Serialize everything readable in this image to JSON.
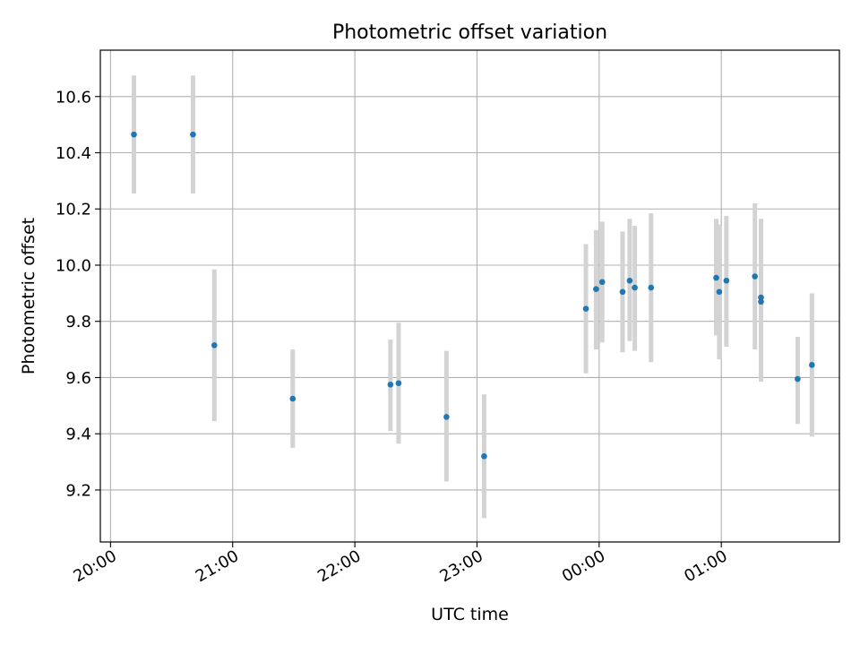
{
  "chart_data": {
    "type": "scatter",
    "title": "Photometric offset variation",
    "xlabel": "UTC time",
    "ylabel": "Photometric offset",
    "grid": true,
    "x_unit": "minutes since 20:00 UTC",
    "xlim": [
      -5,
      358
    ],
    "ylim": [
      9.015,
      10.765
    ],
    "x_ticks": [
      {
        "value": 0,
        "label": "20:00"
      },
      {
        "value": 60,
        "label": "21:00"
      },
      {
        "value": 120,
        "label": "22:00"
      },
      {
        "value": 180,
        "label": "23:00"
      },
      {
        "value": 240,
        "label": "00:00"
      },
      {
        "value": 300,
        "label": "01:00"
      }
    ],
    "y_ticks": [
      {
        "value": 9.2,
        "label": "9.2"
      },
      {
        "value": 9.4,
        "label": "9.4"
      },
      {
        "value": 9.6,
        "label": "9.6"
      },
      {
        "value": 9.8,
        "label": "9.8"
      },
      {
        "value": 10.0,
        "label": "10.0"
      },
      {
        "value": 10.2,
        "label": "10.2"
      },
      {
        "value": 10.4,
        "label": "10.4"
      },
      {
        "value": 10.6,
        "label": "10.6"
      }
    ],
    "marker_color": "#1f77b4",
    "errorbar_color": "#d3d3d3",
    "points": [
      {
        "x": 11.5,
        "y": 10.465,
        "lo": 10.255,
        "hi": 10.675
      },
      {
        "x": 40.5,
        "y": 10.465,
        "lo": 10.255,
        "hi": 10.675
      },
      {
        "x": 51.0,
        "y": 9.715,
        "lo": 9.445,
        "hi": 9.985
      },
      {
        "x": 89.5,
        "y": 9.525,
        "lo": 9.35,
        "hi": 9.7
      },
      {
        "x": 137.5,
        "y": 9.575,
        "lo": 9.41,
        "hi": 9.735
      },
      {
        "x": 141.5,
        "y": 9.58,
        "lo": 9.365,
        "hi": 9.795
      },
      {
        "x": 165.0,
        "y": 9.46,
        "lo": 9.23,
        "hi": 9.695
      },
      {
        "x": 183.5,
        "y": 9.32,
        "lo": 9.1,
        "hi": 9.54
      },
      {
        "x": 233.5,
        "y": 9.845,
        "lo": 9.615,
        "hi": 10.075
      },
      {
        "x": 238.5,
        "y": 9.915,
        "lo": 9.7,
        "hi": 10.125
      },
      {
        "x": 241.5,
        "y": 9.94,
        "lo": 9.725,
        "hi": 10.155
      },
      {
        "x": 251.5,
        "y": 9.905,
        "lo": 9.69,
        "hi": 10.12
      },
      {
        "x": 255.0,
        "y": 9.945,
        "lo": 9.73,
        "hi": 10.165
      },
      {
        "x": 257.5,
        "y": 9.92,
        "lo": 9.695,
        "hi": 10.14
      },
      {
        "x": 265.5,
        "y": 9.92,
        "lo": 9.655,
        "hi": 10.185
      },
      {
        "x": 297.5,
        "y": 9.955,
        "lo": 9.75,
        "hi": 10.165
      },
      {
        "x": 299.0,
        "y": 9.905,
        "lo": 9.665,
        "hi": 10.145
      },
      {
        "x": 302.5,
        "y": 9.945,
        "lo": 9.71,
        "hi": 10.175
      },
      {
        "x": 316.5,
        "y": 9.96,
        "lo": 9.7,
        "hi": 10.22
      },
      {
        "x": 319.5,
        "y": 9.885,
        "lo": 9.605,
        "hi": 10.165
      },
      {
        "x": 319.5,
        "y": 9.87,
        "lo": 9.585,
        "hi": 10.155
      },
      {
        "x": 337.5,
        "y": 9.595,
        "lo": 9.435,
        "hi": 9.745
      },
      {
        "x": 344.5,
        "y": 9.645,
        "lo": 9.39,
        "hi": 9.9
      }
    ]
  }
}
